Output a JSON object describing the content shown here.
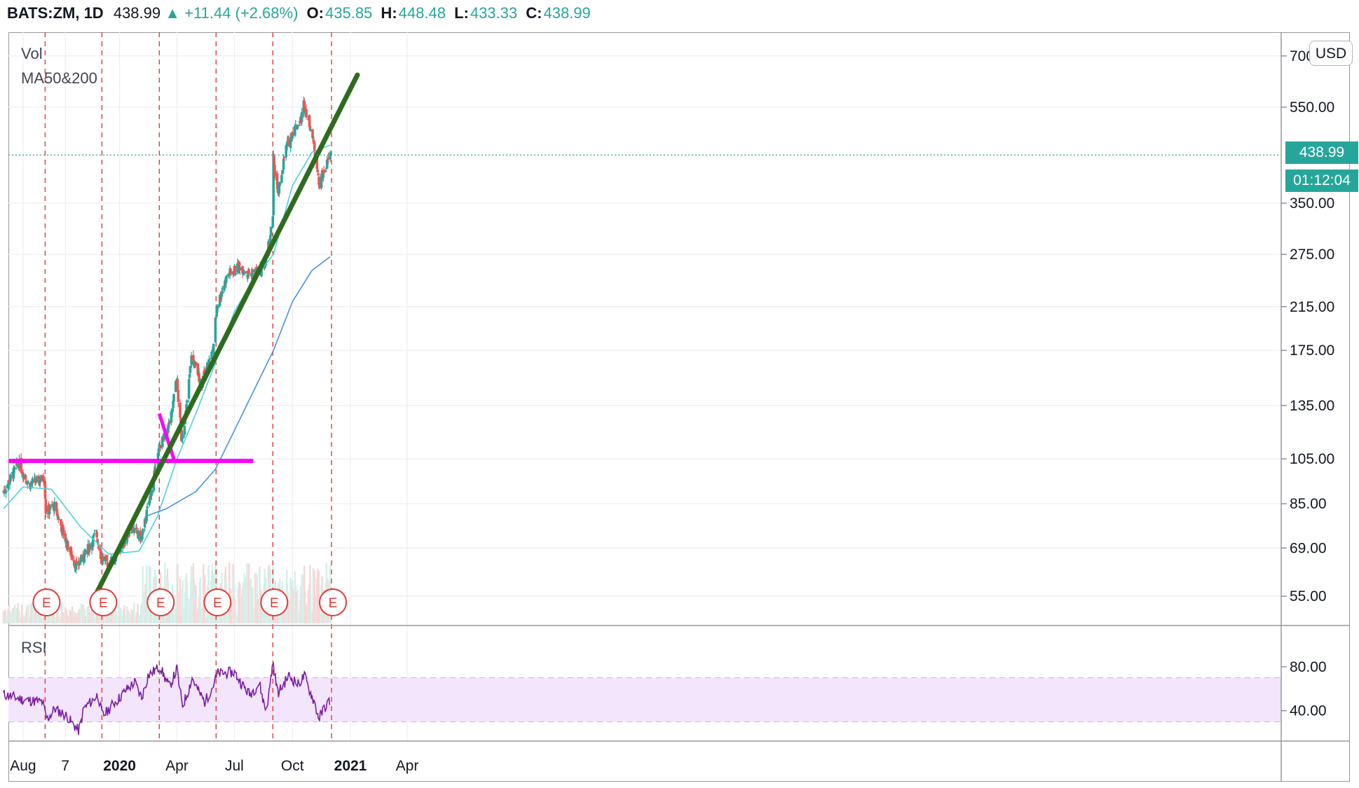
{
  "header": {
    "symbol": "BATS:ZM, 1D",
    "last": "438.99",
    "change": "+11.44 (+2.68%)",
    "o_label": "O:",
    "o_value": "435.85",
    "h_label": "H:",
    "h_value": "448.48",
    "l_label": "L:",
    "l_value": "433.33",
    "c_label": "C:",
    "c_value": "438.99"
  },
  "indicators": {
    "vol_label": "Vol",
    "ma_label": "MA50&200",
    "rsi_label": "RSI"
  },
  "currency": "USD",
  "last_price_tag": "438.99",
  "countdown_tag": "01:12:04",
  "colors": {
    "up": "#26a69a",
    "down": "#ef5350",
    "ma50": "#4dd0e1",
    "ma200": "#4a90e2",
    "trendline": "#2e6b1f",
    "support": "#ff00ff",
    "rsi": "#7b1fa2",
    "rsi_band": "#f3e5fc",
    "event": "#e53935",
    "grid": "#eceef3"
  },
  "chart_data": {
    "type": "candlestick",
    "price_scale": "log",
    "y_ticks": [
      "700.00",
      "550.00",
      "350.00",
      "275.00",
      "215.00",
      "175.00",
      "135.00",
      "105.00",
      "85.00",
      "69.00",
      "55.00"
    ],
    "x_ticks": [
      "Aug",
      "7",
      "2020",
      "Apr",
      "Jul",
      "Oct",
      "2021",
      "Apr"
    ],
    "price_anchors": [
      {
        "d": "2019-07-01",
        "v": 90
      },
      {
        "d": "2019-07-25",
        "v": 103
      },
      {
        "d": "2019-08-10",
        "v": 93
      },
      {
        "d": "2019-09-04",
        "v": 96
      },
      {
        "d": "2019-09-06",
        "v": 82
      },
      {
        "d": "2019-09-20",
        "v": 84
      },
      {
        "d": "2019-10-10",
        "v": 70
      },
      {
        "d": "2019-10-25",
        "v": 63
      },
      {
        "d": "2019-11-10",
        "v": 68
      },
      {
        "d": "2019-11-25",
        "v": 74
      },
      {
        "d": "2019-12-03",
        "v": 66
      },
      {
        "d": "2019-12-15",
        "v": 64
      },
      {
        "d": "2019-12-31",
        "v": 68
      },
      {
        "d": "2020-01-20",
        "v": 76
      },
      {
        "d": "2020-02-05",
        "v": 72
      },
      {
        "d": "2020-02-20",
        "v": 90
      },
      {
        "d": "2020-03-05",
        "v": 112
      },
      {
        "d": "2020-03-15",
        "v": 118
      },
      {
        "d": "2020-03-24",
        "v": 130
      },
      {
        "d": "2020-03-31",
        "v": 155
      },
      {
        "d": "2020-04-08",
        "v": 116
      },
      {
        "d": "2020-04-15",
        "v": 130
      },
      {
        "d": "2020-04-24",
        "v": 170
      },
      {
        "d": "2020-05-10",
        "v": 150
      },
      {
        "d": "2020-05-28",
        "v": 175
      },
      {
        "d": "2020-06-03",
        "v": 215
      },
      {
        "d": "2020-06-20",
        "v": 250
      },
      {
        "d": "2020-07-10",
        "v": 260
      },
      {
        "d": "2020-07-25",
        "v": 250
      },
      {
        "d": "2020-08-12",
        "v": 255
      },
      {
        "d": "2020-08-20",
        "v": 265
      },
      {
        "d": "2020-08-31",
        "v": 325
      },
      {
        "d": "2020-09-01",
        "v": 430
      },
      {
        "d": "2020-09-08",
        "v": 360
      },
      {
        "d": "2020-09-20",
        "v": 450
      },
      {
        "d": "2020-10-01",
        "v": 490
      },
      {
        "d": "2020-10-15",
        "v": 520
      },
      {
        "d": "2020-10-19",
        "v": 560
      },
      {
        "d": "2020-10-30",
        "v": 500
      },
      {
        "d": "2020-11-09",
        "v": 420
      },
      {
        "d": "2020-11-12",
        "v": 380
      },
      {
        "d": "2020-11-30",
        "v": 438.99
      }
    ],
    "ma50_anchors": [
      {
        "d": "2019-07-01",
        "v": 83
      },
      {
        "d": "2019-08-01",
        "v": 92
      },
      {
        "d": "2019-09-15",
        "v": 91
      },
      {
        "d": "2019-11-01",
        "v": 76
      },
      {
        "d": "2019-12-15",
        "v": 67
      },
      {
        "d": "2020-02-01",
        "v": 68
      },
      {
        "d": "2020-03-01",
        "v": 80
      },
      {
        "d": "2020-04-01",
        "v": 105
      },
      {
        "d": "2020-05-01",
        "v": 130
      },
      {
        "d": "2020-06-01",
        "v": 165
      },
      {
        "d": "2020-07-01",
        "v": 210
      },
      {
        "d": "2020-08-01",
        "v": 245
      },
      {
        "d": "2020-09-01",
        "v": 275
      },
      {
        "d": "2020-10-01",
        "v": 380
      },
      {
        "d": "2020-11-01",
        "v": 445
      },
      {
        "d": "2020-11-30",
        "v": 460
      }
    ],
    "ma200_anchors": [
      {
        "d": "2020-02-10",
        "v": 80
      },
      {
        "d": "2020-03-15",
        "v": 83
      },
      {
        "d": "2020-05-01",
        "v": 90
      },
      {
        "d": "2020-06-01",
        "v": 100
      },
      {
        "d": "2020-07-01",
        "v": 120
      },
      {
        "d": "2020-08-01",
        "v": 145
      },
      {
        "d": "2020-09-01",
        "v": 175
      },
      {
        "d": "2020-10-01",
        "v": 220
      },
      {
        "d": "2020-11-01",
        "v": 255
      },
      {
        "d": "2020-11-30",
        "v": 272
      }
    ],
    "rsi_anchors": [
      {
        "d": "2019-07-01",
        "v": 55
      },
      {
        "d": "2019-08-01",
        "v": 50
      },
      {
        "d": "2019-09-01",
        "v": 48
      },
      {
        "d": "2019-09-08",
        "v": 32
      },
      {
        "d": "2019-09-20",
        "v": 42
      },
      {
        "d": "2019-10-10",
        "v": 35
      },
      {
        "d": "2019-10-28",
        "v": 22
      },
      {
        "d": "2019-11-05",
        "v": 42
      },
      {
        "d": "2019-11-28",
        "v": 55
      },
      {
        "d": "2019-12-05",
        "v": 35
      },
      {
        "d": "2019-12-20",
        "v": 45
      },
      {
        "d": "2020-01-10",
        "v": 58
      },
      {
        "d": "2020-01-25",
        "v": 66
      },
      {
        "d": "2020-02-05",
        "v": 52
      },
      {
        "d": "2020-02-15",
        "v": 72
      },
      {
        "d": "2020-03-05",
        "v": 80
      },
      {
        "d": "2020-03-20",
        "v": 62
      },
      {
        "d": "2020-04-01",
        "v": 78
      },
      {
        "d": "2020-04-10",
        "v": 45
      },
      {
        "d": "2020-04-25",
        "v": 70
      },
      {
        "d": "2020-05-15",
        "v": 48
      },
      {
        "d": "2020-06-05",
        "v": 74
      },
      {
        "d": "2020-07-01",
        "v": 75
      },
      {
        "d": "2020-07-25",
        "v": 55
      },
      {
        "d": "2020-08-10",
        "v": 65
      },
      {
        "d": "2020-08-20",
        "v": 40
      },
      {
        "d": "2020-08-31",
        "v": 86
      },
      {
        "d": "2020-09-08",
        "v": 56
      },
      {
        "d": "2020-09-25",
        "v": 72
      },
      {
        "d": "2020-10-10",
        "v": 64
      },
      {
        "d": "2020-10-20",
        "v": 72
      },
      {
        "d": "2020-11-05",
        "v": 48
      },
      {
        "d": "2020-11-12",
        "v": 33
      },
      {
        "d": "2020-11-20",
        "v": 42
      },
      {
        "d": "2020-11-30",
        "v": 50
      }
    ],
    "earnings_dates": [
      "2019-09-05",
      "2019-12-04",
      "2020-03-04",
      "2020-06-02",
      "2020-08-31",
      "2020-12-02"
    ],
    "earnings_label": "E",
    "trendline": {
      "start": {
        "d": "2019-11-20",
        "v": 54
      },
      "end": {
        "d": "2021-01-12",
        "v": 640
      }
    },
    "support_line": {
      "v": 104,
      "from": "2019-06-01",
      "to": "2020-07-31"
    },
    "breakout_line": {
      "start": {
        "d": "2020-03-04",
        "v": 130
      },
      "end": {
        "d": "2020-03-28",
        "v": 104
      }
    },
    "rsi_bands": [
      70,
      30
    ],
    "rsi_ticks": [
      "80.00",
      "40.00"
    ]
  }
}
